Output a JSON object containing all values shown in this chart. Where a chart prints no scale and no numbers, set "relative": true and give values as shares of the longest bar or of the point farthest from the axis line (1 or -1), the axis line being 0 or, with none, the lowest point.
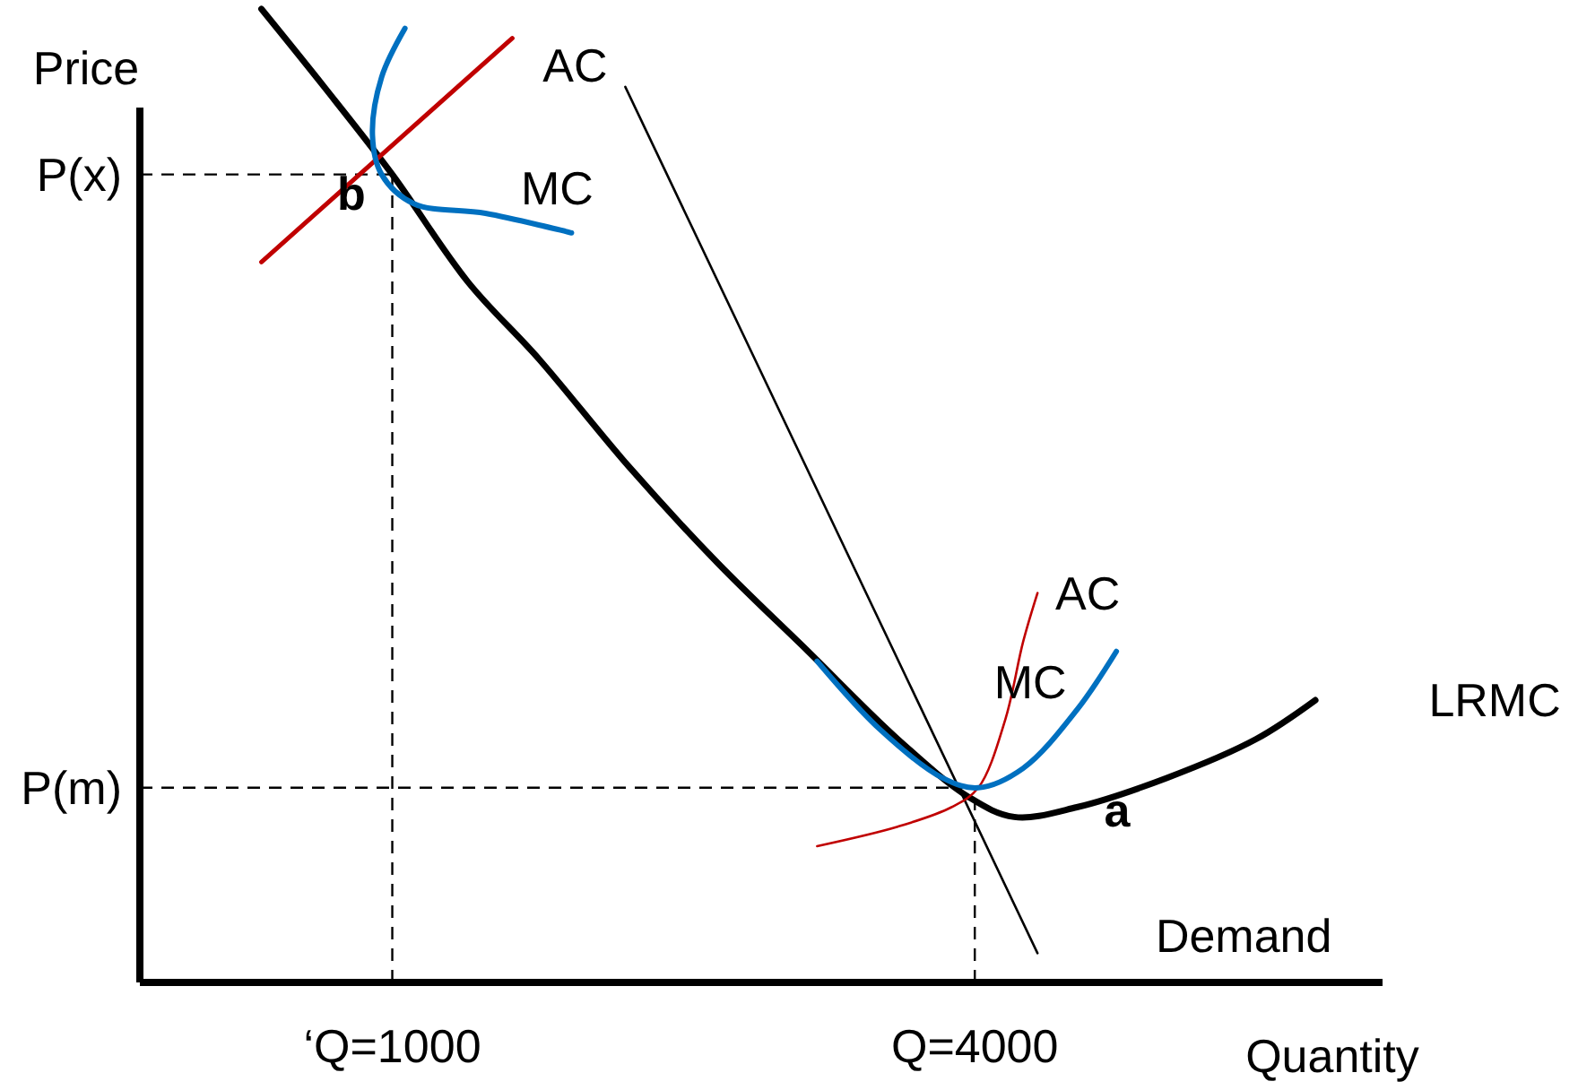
{
  "chart_data": {
    "type": "line",
    "relative": true,
    "xlabel": "Quantity",
    "ylabel": "Price",
    "xlim": [
      -300,
      6100
    ],
    "xticks": [
      {
        "value": 1000,
        "label": "‘Q=1000"
      },
      {
        "value": 4000,
        "label": "Q=4000"
      }
    ],
    "series": [
      {
        "name": "LRMC",
        "color": "#000000",
        "x": [
          326,
          649,
          1000,
          1388,
          1757,
          2218,
          2680,
          3142,
          3603,
          3972,
          4203,
          4526,
          4988,
          5449,
          5754
        ],
        "values": [
          1.0,
          0.92,
          0.83,
          0.72,
          0.64,
          0.53,
          0.43,
          0.34,
          0.25,
          0.19,
          0.17,
          0.18,
          0.21,
          0.25,
          0.29
        ]
      },
      {
        "name": "Demand",
        "color": "#000000",
        "x": [
          2200,
          4323
        ],
        "values": [
          0.92,
          0.03
        ]
      },
      {
        "name": "AC",
        "color": "#c00000",
        "x": [
          326,
          1618
        ],
        "values": [
          0.74,
          0.97
        ]
      },
      {
        "name": "MC",
        "color": "#0070c0",
        "x": [
          1065,
          945,
          898,
          945,
          1111,
          1480,
          1923
        ],
        "values": [
          0.98,
          0.93,
          0.87,
          0.83,
          0.8,
          0.79,
          0.77
        ]
      },
      {
        "name": "AC",
        "color": "#c00000",
        "x": [
          3188,
          3603,
          3880,
          4018,
          4157,
          4249,
          4323
        ],
        "values": [
          0.14,
          0.16,
          0.18,
          0.2,
          0.27,
          0.35,
          0.4
        ]
      },
      {
        "name": "MC",
        "color": "#0070c0",
        "x": [
          3188,
          3511,
          3834,
          4018,
          4249,
          4526,
          4729
        ],
        "values": [
          0.33,
          0.26,
          0.21,
          0.2,
          0.22,
          0.28,
          0.34
        ]
      }
    ],
    "ref_lines": [
      {
        "axis": "y",
        "value": 0.83,
        "label": "P(x)",
        "line_style": "dashed"
      },
      {
        "axis": "y",
        "value": 0.2,
        "label": "P(m)",
        "line_style": "dashed"
      },
      {
        "axis": "x",
        "value": 1000,
        "line_style": "dashed"
      },
      {
        "axis": "x",
        "value": 4000,
        "line_style": "dashed"
      }
    ],
    "annotations": [
      "b",
      "a"
    ]
  }
}
